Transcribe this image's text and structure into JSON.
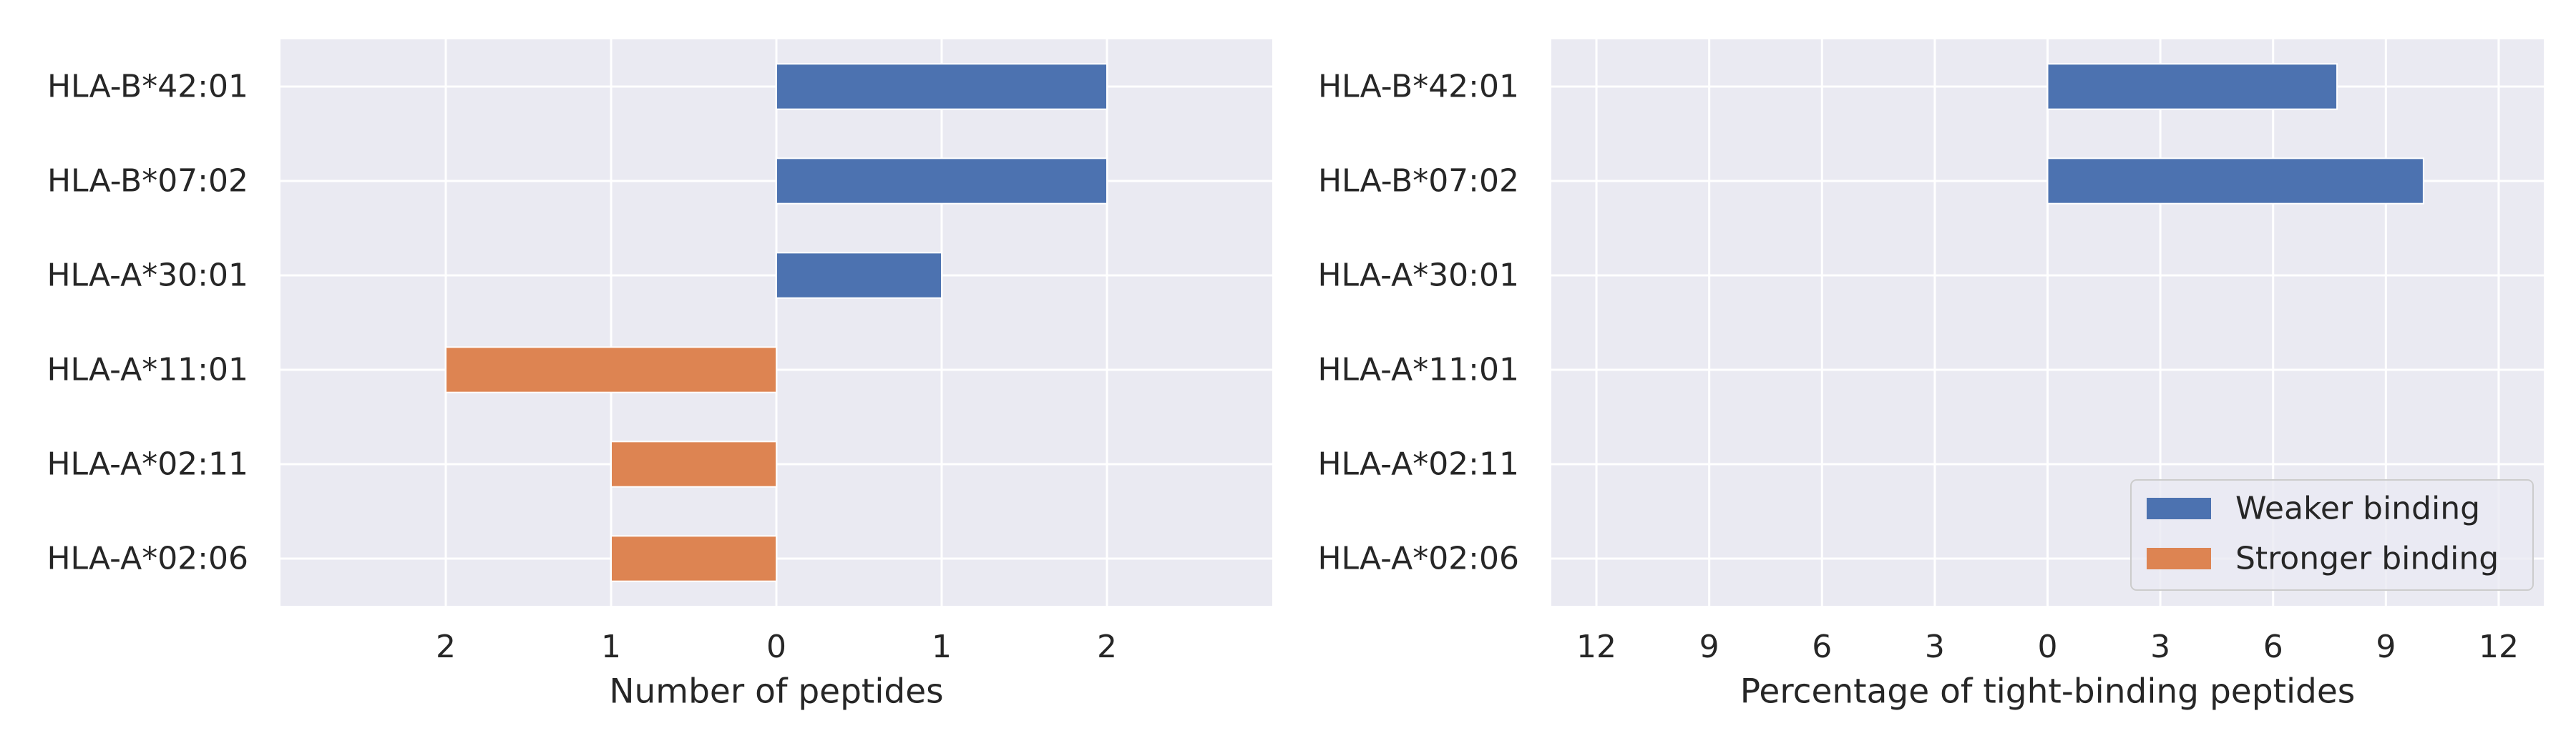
{
  "chart_data": [
    {
      "type": "bar",
      "orientation": "horizontal",
      "categories": [
        "HLA-B*42:01",
        "HLA-B*07:02",
        "HLA-A*30:01",
        "HLA-A*11:01",
        "HLA-A*02:11",
        "HLA-A*02:06"
      ],
      "series": [
        {
          "name": "Weaker binding",
          "values": [
            2,
            2,
            1,
            0,
            0,
            0
          ],
          "direction": "right"
        },
        {
          "name": "Stronger binding",
          "values": [
            0,
            0,
            0,
            2,
            1,
            1
          ],
          "direction": "left"
        }
      ],
      "xlabel": "Number of peptides",
      "xlim": [
        -3,
        3
      ],
      "xticks": [
        -2,
        -1,
        0,
        1,
        2
      ],
      "xtick_labels": [
        "2",
        "1",
        "0",
        "1",
        "2"
      ],
      "grid": true
    },
    {
      "type": "bar",
      "orientation": "horizontal",
      "categories": [
        "HLA-B*42:01",
        "HLA-B*07:02",
        "HLA-A*30:01",
        "HLA-A*11:01",
        "HLA-A*02:11",
        "HLA-A*02:06"
      ],
      "series": [
        {
          "name": "Weaker binding",
          "values": [
            7.7,
            10,
            0,
            0,
            0,
            0
          ],
          "direction": "right"
        },
        {
          "name": "Stronger binding",
          "values": [
            0,
            0,
            0,
            0,
            0,
            0
          ],
          "direction": "left"
        }
      ],
      "xlabel": "Percentage of tight-binding peptides",
      "xlim": [
        -13.2,
        13.2
      ],
      "xticks": [
        -12,
        -9,
        -6,
        -3,
        0,
        3,
        6,
        9,
        12
      ],
      "xtick_labels": [
        "12",
        "9",
        "6",
        "3",
        "0",
        "3",
        "6",
        "9",
        "12"
      ],
      "grid": true,
      "legend": {
        "placement": "lower-right",
        "entries": [
          "Weaker binding",
          "Stronger binding"
        ]
      }
    }
  ],
  "colors": {
    "weaker": "#4c72b0",
    "stronger": "#dd8452",
    "panel": "#eaeaf2",
    "grid": "#ffffff",
    "text": "#262626"
  }
}
